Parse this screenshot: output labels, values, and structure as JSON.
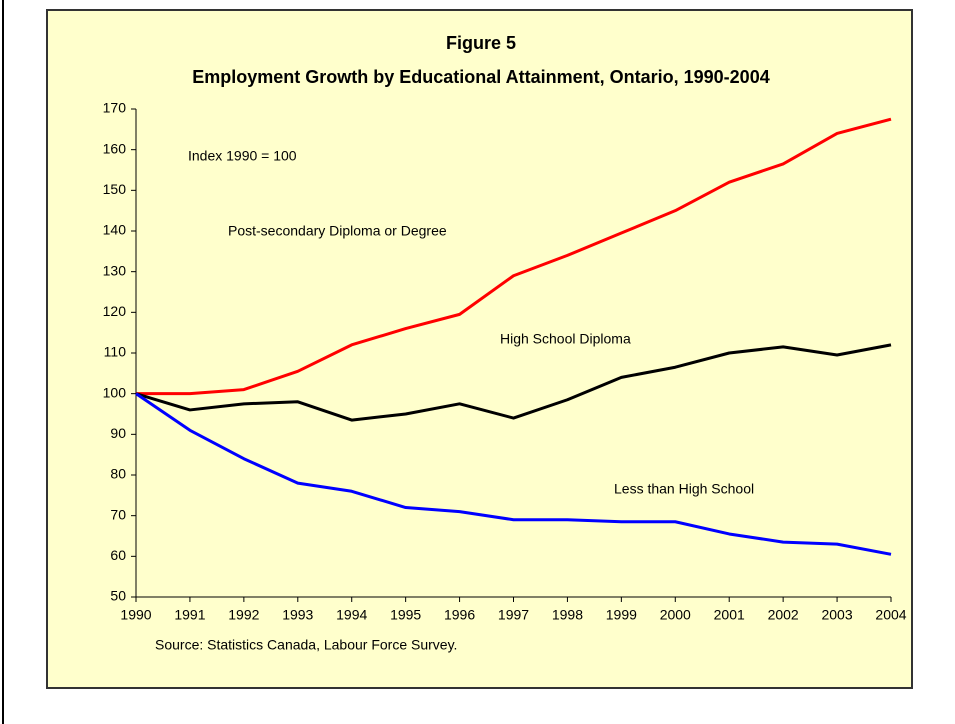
{
  "chart_data": {
    "type": "line",
    "title": "Figure 5",
    "subtitle": "Employment Growth by Educational Attainment, Ontario, 1990-2004",
    "annotations": [
      "Index 1990 = 100",
      "Post-secondary Diploma or Degree",
      "High School Diploma",
      "Less than High School"
    ],
    "source": "Source: Statistics Canada, Labour Force Survey.",
    "x": [
      1990,
      1991,
      1992,
      1993,
      1994,
      1995,
      1996,
      1997,
      1998,
      1999,
      2000,
      2001,
      2002,
      2003,
      2004
    ],
    "xlim": [
      1990,
      2004
    ],
    "xticks": [
      1990,
      1991,
      1992,
      1993,
      1994,
      1995,
      1996,
      1997,
      1998,
      1999,
      2000,
      2001,
      2002,
      2003,
      2004
    ],
    "ylim": [
      50,
      170
    ],
    "yticks": [
      50,
      60,
      70,
      80,
      90,
      100,
      110,
      120,
      130,
      140,
      150,
      160,
      170
    ],
    "grid": false,
    "series": [
      {
        "name": "Post-secondary Diploma or Degree",
        "color": "#ff0000",
        "values": [
          100,
          100,
          101,
          105.5,
          112,
          116,
          119.5,
          129,
          134,
          139.5,
          145,
          152,
          156.5,
          164,
          167.5
        ]
      },
      {
        "name": "High School Diploma",
        "color": "#000000",
        "values": [
          100,
          96,
          97.5,
          98,
          93.5,
          95,
          97.5,
          94,
          98.5,
          104,
          106.5,
          110,
          111.5,
          109.5,
          112
        ]
      },
      {
        "name": "Less than High School",
        "color": "#0000ff",
        "values": [
          100,
          91,
          84,
          78,
          76,
          72,
          71,
          69,
          69,
          68.5,
          68.5,
          65.5,
          63.5,
          63,
          60.5
        ]
      }
    ]
  }
}
